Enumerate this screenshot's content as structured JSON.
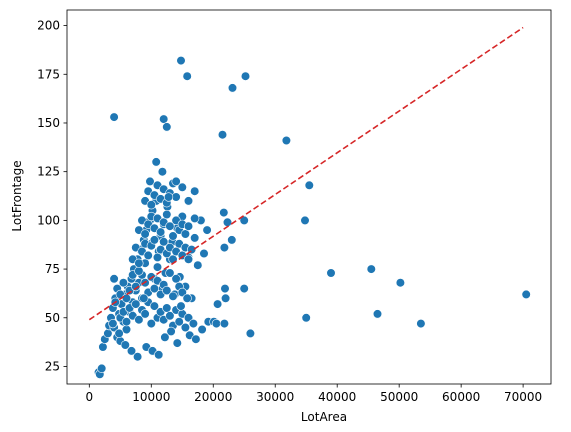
{
  "chart_data": {
    "type": "scatter",
    "title": "",
    "xlabel": "LotArea",
    "ylabel": "LotFrontage",
    "xlim": [
      -3600,
      74500
    ],
    "ylim": [
      16,
      208
    ],
    "xticks": [
      0,
      10000,
      20000,
      30000,
      40000,
      50000,
      60000,
      70000
    ],
    "yticks": [
      25,
      50,
      75,
      100,
      125,
      150,
      175,
      200
    ],
    "grid": false,
    "legend": "none",
    "colors": {
      "points": "#1f77b4",
      "point_edge": "#ffffff",
      "trend": "#d62728"
    },
    "series": [
      {
        "style": "markers",
        "x": [
          1500,
          1700,
          2000,
          2200,
          2500,
          3000,
          3200,
          3500,
          3800,
          4000,
          4200,
          4500,
          4800,
          5000,
          5200,
          5500,
          5800,
          6000,
          6200,
          6500,
          6800,
          7000,
          7200,
          7500,
          7800,
          8000,
          8200,
          8500,
          8800,
          9000,
          9200,
          9500,
          9800,
          10000,
          10200,
          10500,
          10800,
          11000,
          11200,
          11500,
          11800,
          12000,
          12300,
          12600,
          13000,
          13400,
          13800,
          14200,
          14600,
          15000,
          15500,
          16000,
          16500,
          17000,
          17500,
          18000,
          18500,
          19000,
          4000,
          4500,
          5000,
          5500,
          6000,
          6500,
          7000,
          7500,
          8000,
          8500,
          9000,
          9500,
          10000,
          10500,
          11000,
          11500,
          12000,
          12500,
          13000,
          13500,
          14000,
          14500,
          15000,
          5000,
          5500,
          6000,
          6500,
          7000,
          7500,
          8000,
          8500,
          9000,
          9500,
          10000,
          10500,
          11000,
          11500,
          12000,
          12500,
          13000,
          13500,
          14000,
          14500,
          15000,
          15500,
          16000,
          7000,
          7500,
          8000,
          8500,
          9000,
          9500,
          10000,
          10500,
          11000,
          11500,
          12000,
          12500,
          13000,
          13500,
          14000,
          14500,
          15000,
          15500,
          16000,
          16500,
          8000,
          8500,
          9000,
          9500,
          10000,
          10500,
          11000,
          11500,
          12000,
          12500,
          13000,
          13500,
          14000,
          14500,
          15000,
          15500,
          16000,
          17000,
          9000,
          9500,
          10000,
          10500,
          11000,
          11500,
          12000,
          12500,
          13000,
          13500,
          14000,
          15000,
          16000,
          17000,
          4200,
          9200,
          10200,
          11200,
          12200,
          13200,
          14200,
          16200,
          17200,
          18200,
          19200,
          14800,
          15800,
          16800,
          12800,
          11800,
          10800,
          9800,
          8800,
          7800,
          6800,
          5800,
          4800,
          3800,
          4000,
          12000,
          12500,
          14000,
          14800,
          15800,
          23100,
          25200,
          31800,
          35500,
          34800,
          21500,
          21700,
          22300,
          23000,
          25000,
          21800,
          20100,
          20500,
          21900,
          20700,
          25000,
          26000,
          21800,
          22000,
          35000,
          39000,
          45500,
          50200,
          46500,
          53500,
          70500
        ],
        "y": [
          22,
          21,
          24,
          35,
          39,
          42,
          46,
          50,
          55,
          45,
          60,
          40,
          52,
          38,
          57,
          48,
          62,
          44,
          66,
          53,
          70,
          58,
          75,
          64,
          80,
          68,
          85,
          72,
          90,
          78,
          95,
          82,
          100,
          88,
          105,
          70,
          110,
          76,
          84,
          92,
          65,
          98,
          73,
          107,
          80,
          89,
          62,
          96,
          71,
          102,
          66,
          81,
          60,
          91,
          77,
          100,
          83,
          95,
          70,
          65,
          62,
          68,
          60,
          64,
          72,
          66,
          74,
          60,
          68,
          63,
          71,
          65,
          69,
          62,
          67,
          64,
          73,
          61,
          70,
          66,
          63,
          50,
          53,
          48,
          55,
          51,
          57,
          49,
          54,
          52,
          58,
          47,
          56,
          50,
          53,
          49,
          55,
          51,
          46,
          54,
          48,
          52,
          45,
          50,
          80,
          86,
          78,
          84,
          88,
          82,
          87,
          90,
          81,
          85,
          89,
          83,
          86,
          80,
          84,
          88,
          82,
          86,
          80,
          85,
          95,
          100,
          93,
          98,
          102,
          96,
          101,
          94,
          99,
          103,
          97,
          92,
          100,
          95,
          98,
          93,
          97,
          101,
          110,
          115,
          108,
          113,
          118,
          111,
          116,
          109,
          114,
          119,
          112,
          117,
          110,
          115,
          58,
          35,
          33,
          31,
          40,
          43,
          37,
          41,
          39,
          44,
          48,
          56,
          60,
          47,
          112,
          125,
          130,
          120,
          60,
          30,
          33,
          36,
          42,
          47,
          153,
          152,
          148,
          120,
          182,
          174,
          168,
          174,
          141,
          118,
          100,
          144,
          104,
          99,
          90,
          100,
          86,
          48,
          47,
          65,
          57,
          65,
          42,
          47,
          60,
          50,
          73,
          75,
          68,
          52,
          47,
          62
        ]
      },
      {
        "style": "dashed-line",
        "x": [
          0,
          70000
        ],
        "y": [
          49,
          199
        ]
      }
    ]
  }
}
